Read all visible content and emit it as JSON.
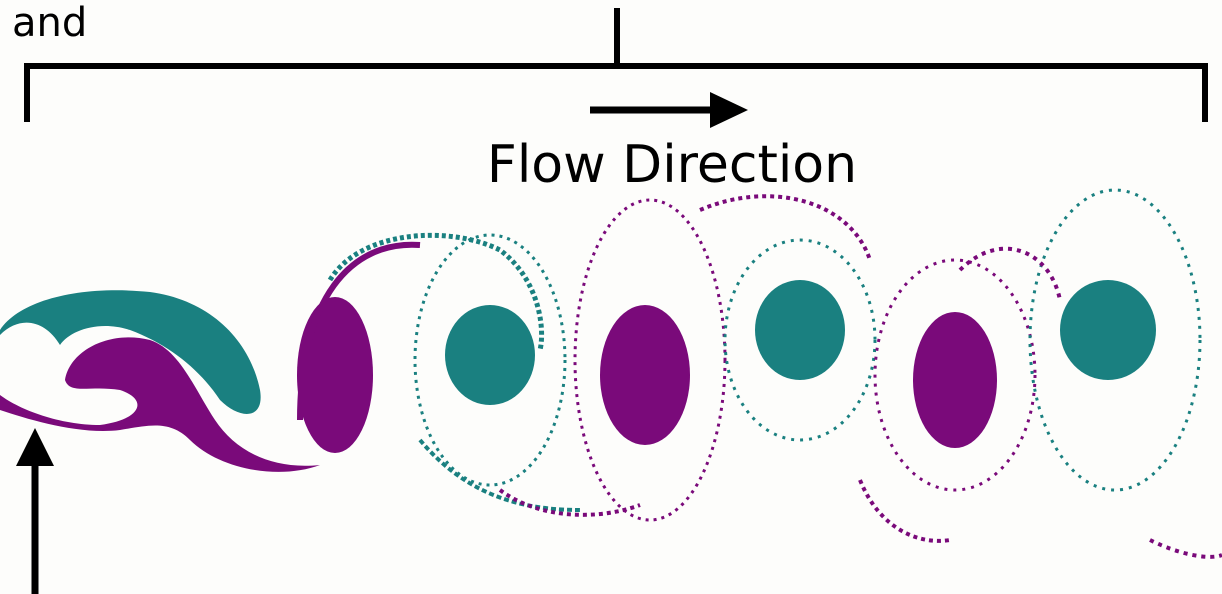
{
  "header": {
    "text": "and"
  },
  "arrow_label": {
    "text": "Flow Direction"
  }
}
